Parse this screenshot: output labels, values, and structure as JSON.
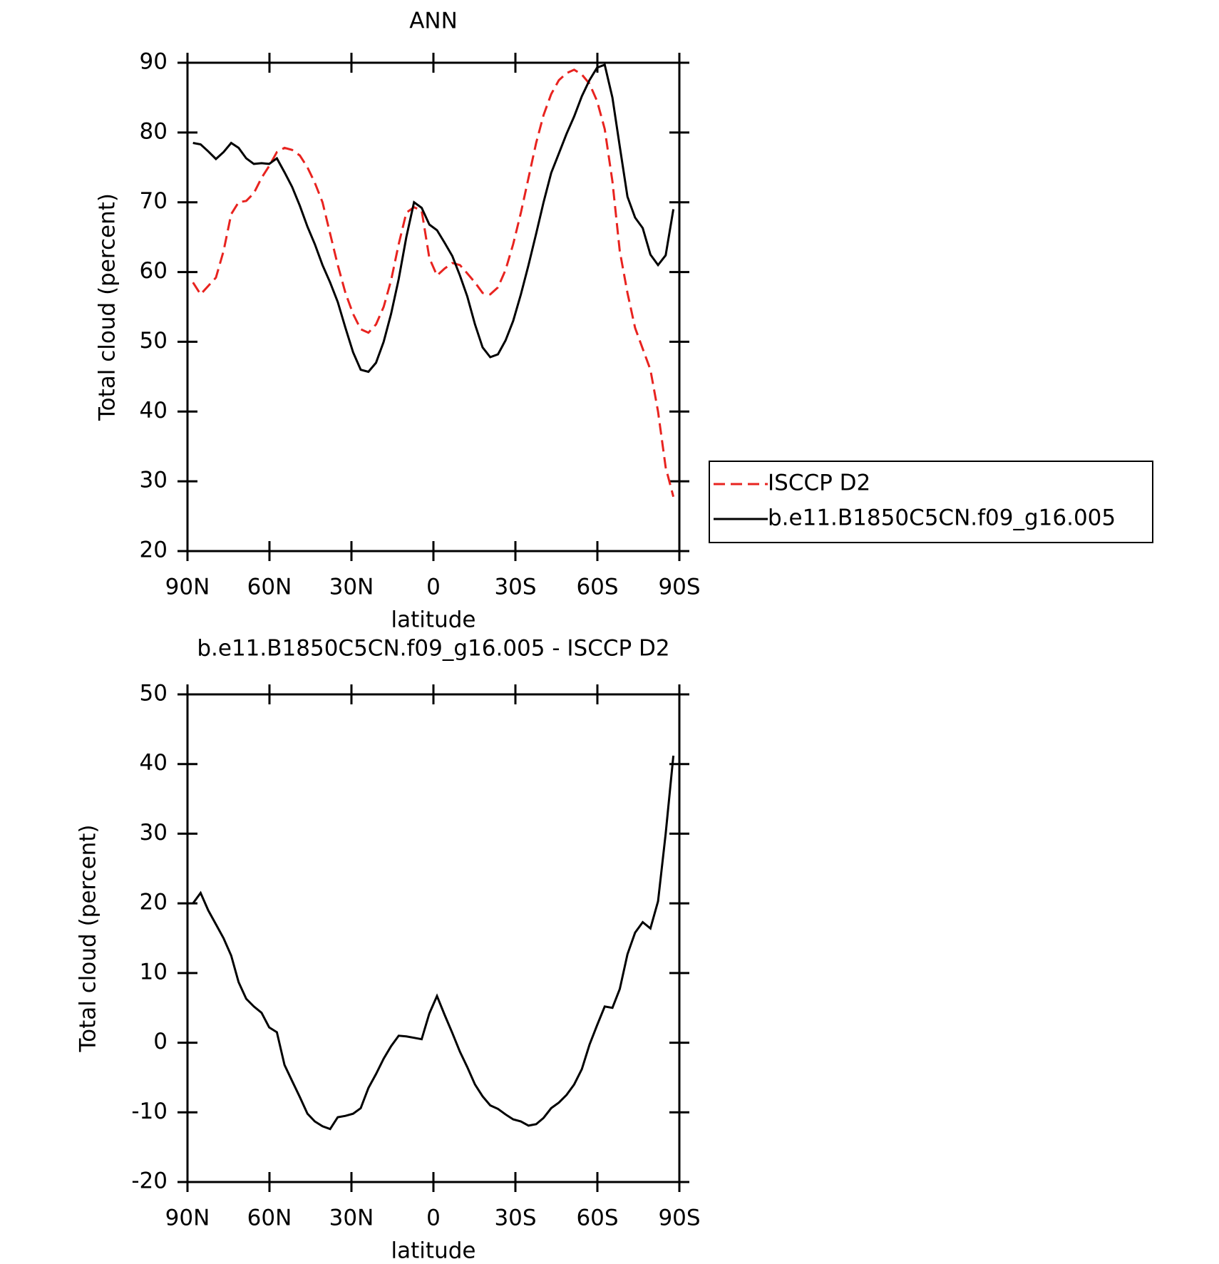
{
  "chart_data": [
    {
      "type": "line",
      "title": "ANN",
      "xlabel": "latitude",
      "ylabel": "Total cloud (percent)",
      "x": [
        88.0,
        85.2,
        82.4,
        79.6,
        76.8,
        74.0,
        71.3,
        68.5,
        65.7,
        62.9,
        60.1,
        57.3,
        54.5,
        51.7,
        48.9,
        46.1,
        43.4,
        40.6,
        37.8,
        35.0,
        32.2,
        29.4,
        26.6,
        23.8,
        21.0,
        18.2,
        15.5,
        12.7,
        9.9,
        7.1,
        4.3,
        1.5,
        -1.3,
        -4.1,
        -6.9,
        -9.7,
        -12.4,
        -15.2,
        -18.0,
        -20.8,
        -23.6,
        -26.4,
        -29.2,
        -32.0,
        -34.8,
        -37.6,
        -40.3,
        -43.1,
        -45.9,
        -48.7,
        -51.5,
        -54.3,
        -57.1,
        -59.9,
        -62.7,
        -65.5,
        -68.2,
        -71.0,
        -73.8,
        -76.6,
        -79.4,
        -82.2,
        -85.0,
        -87.8
      ],
      "series": [
        {
          "name": "ISCCP D2",
          "color": "#e8231f",
          "line_style": "dashed",
          "values": [
            58.5,
            56.8,
            58,
            59.2,
            63,
            68.3,
            70,
            70.2,
            71.3,
            73.5,
            75.2,
            77.2,
            77.8,
            77.5,
            76.7,
            75,
            72.8,
            70,
            65.5,
            61,
            57,
            54,
            51.8,
            51.3,
            52.5,
            55,
            58.8,
            64,
            68.5,
            69.3,
            68.8,
            62,
            59.5,
            60.5,
            61.3,
            61,
            59.8,
            58.5,
            57,
            56.8,
            57.8,
            60.3,
            64,
            68.5,
            73.5,
            78.5,
            82.5,
            85.5,
            87.5,
            88.5,
            89,
            88.3,
            87,
            84.5,
            80.5,
            73,
            63,
            57,
            52,
            49,
            46,
            40,
            32,
            27.8
          ]
        },
        {
          "name": "b.e11.B1850C5CN.f09_g16.005",
          "color": "#000000",
          "line_style": "solid",
          "values": [
            78.5,
            78.3,
            77.3,
            76.2,
            77.2,
            78.5,
            77.8,
            76.3,
            75.5,
            75.6,
            75.5,
            76.3,
            74.3,
            72.2,
            69.5,
            66.5,
            64,
            61,
            58.5,
            55.7,
            52,
            48.5,
            46,
            45.7,
            47,
            50,
            54,
            59,
            65,
            70,
            69.2,
            66.8,
            66,
            64.2,
            62.3,
            59.5,
            56.5,
            52.5,
            49.2,
            47.8,
            48.2,
            50.2,
            53,
            56.8,
            61,
            65.5,
            70,
            74.2,
            77,
            79.8,
            82.3,
            85.2,
            87.5,
            89.3,
            89.7,
            85,
            78,
            70.8,
            67.8,
            66.3,
            62.5,
            61,
            62.4,
            69
          ]
        }
      ],
      "xlim": [
        90,
        -90
      ],
      "xticks": [
        {
          "value": 90,
          "label": "90N"
        },
        {
          "value": 60,
          "label": "60N"
        },
        {
          "value": 30,
          "label": "30N"
        },
        0,
        {
          "value": -30,
          "label": "30S"
        },
        {
          "value": -60,
          "label": "60S"
        },
        {
          "value": -90,
          "label": "90S"
        }
      ],
      "ylim": [
        20,
        90
      ],
      "yticks": [
        20,
        30,
        40,
        50,
        60,
        70,
        80,
        90
      ],
      "legend": "outside-right"
    },
    {
      "type": "line",
      "title": "b.e11.B1850C5CN.f09_g16.005 - ISCCP D2",
      "xlabel": "latitude",
      "ylabel": "Total cloud (percent)",
      "x": [
        88.0,
        85.2,
        82.4,
        79.6,
        76.8,
        74.0,
        71.3,
        68.5,
        65.7,
        62.9,
        60.1,
        57.3,
        54.5,
        51.7,
        48.9,
        46.1,
        43.4,
        40.6,
        37.8,
        35.0,
        32.2,
        29.4,
        26.6,
        23.8,
        21.0,
        18.2,
        15.5,
        12.7,
        9.9,
        7.1,
        4.3,
        1.5,
        -1.3,
        -4.1,
        -6.9,
        -9.7,
        -12.4,
        -15.2,
        -18.0,
        -20.8,
        -23.6,
        -26.4,
        -29.2,
        -32.0,
        -34.8,
        -37.6,
        -40.3,
        -43.1,
        -45.9,
        -48.7,
        -51.5,
        -54.3,
        -57.1,
        -59.9,
        -62.7,
        -65.5,
        -68.2,
        -71.0,
        -73.8,
        -76.6,
        -79.4,
        -82.2,
        -85.0,
        -87.8
      ],
      "series": [
        {
          "color": "#000000",
          "line_style": "solid",
          "values": [
            20,
            21.5,
            19,
            17,
            15,
            12.5,
            8.7,
            6.3,
            5.2,
            4.3,
            2.2,
            1.5,
            -3.2,
            -5.5,
            -7.8,
            -10.2,
            -11.3,
            -12,
            -12.4,
            -10.7,
            -10.5,
            -10.2,
            -9.4,
            -6.5,
            -4.5,
            -2.3,
            -0.5,
            1,
            0.9,
            0.7,
            0.5,
            4.2,
            6.7,
            4,
            1.4,
            -1.3,
            -3.5,
            -6,
            -7.7,
            -9,
            -9.5,
            -10.3,
            -11,
            -11.3,
            -11.9,
            -11.7,
            -10.8,
            -9.4,
            -8.6,
            -7.5,
            -6,
            -3.8,
            -0.3,
            2.5,
            5.2,
            5,
            7.7,
            12.7,
            15.8,
            17.3,
            16.4,
            20.3,
            30,
            41.2
          ]
        }
      ],
      "xlim": [
        90,
        -90
      ],
      "xticks": [
        {
          "value": 90,
          "label": "90N"
        },
        {
          "value": 60,
          "label": "60N"
        },
        {
          "value": 30,
          "label": "30N"
        },
        0,
        {
          "value": -30,
          "label": "30S"
        },
        {
          "value": -60,
          "label": "60S"
        },
        {
          "value": -90,
          "label": "90S"
        }
      ],
      "ylim": [
        -20,
        50
      ],
      "yticks": [
        -20,
        -10,
        0,
        10,
        20,
        30,
        40,
        50
      ]
    }
  ]
}
